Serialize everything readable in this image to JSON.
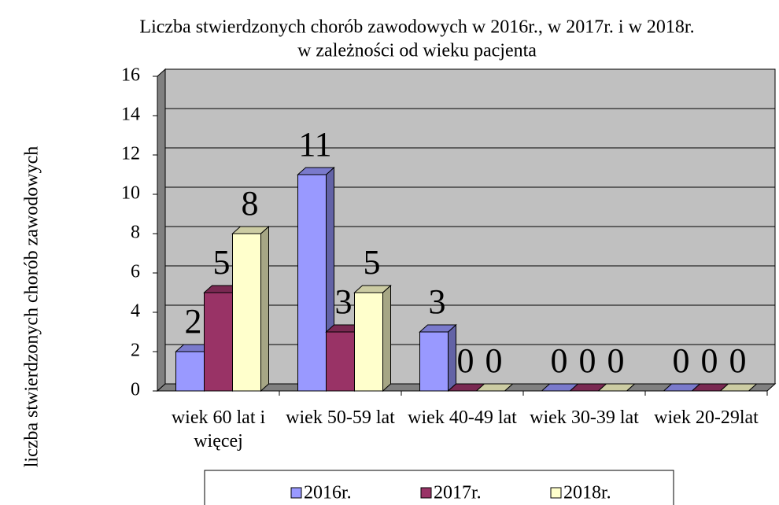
{
  "chart_data": {
    "type": "bar3d",
    "title": [
      "Liczba stwierdzonych chorób zawodowych w 2016r., w 2017r. i w 2018r.",
      "w zależności od wieku pacjenta"
    ],
    "y_label": "liczba stwierdzonych chorób zawodowych",
    "categories": [
      "wiek 60 lat i więcej",
      "wiek 50-59 lat",
      "wiek 40-49 lat",
      "wiek 30-39 lat",
      "wiek 20-29lat"
    ],
    "series": [
      {
        "name": "2016r.",
        "color": "#9999ff",
        "values": [
          2,
          11,
          3,
          0,
          0
        ]
      },
      {
        "name": "2017r.",
        "color": "#993366",
        "values": [
          5,
          3,
          0,
          0,
          0
        ]
      },
      {
        "name": "2018r.",
        "color": "#ffffcc",
        "values": [
          8,
          5,
          0,
          0,
          0
        ]
      }
    ],
    "ylim": [
      0,
      16
    ],
    "yticks": [
      0,
      2,
      4,
      6,
      8,
      10,
      12,
      14,
      16
    ],
    "grid": true,
    "legend": "bottom"
  }
}
